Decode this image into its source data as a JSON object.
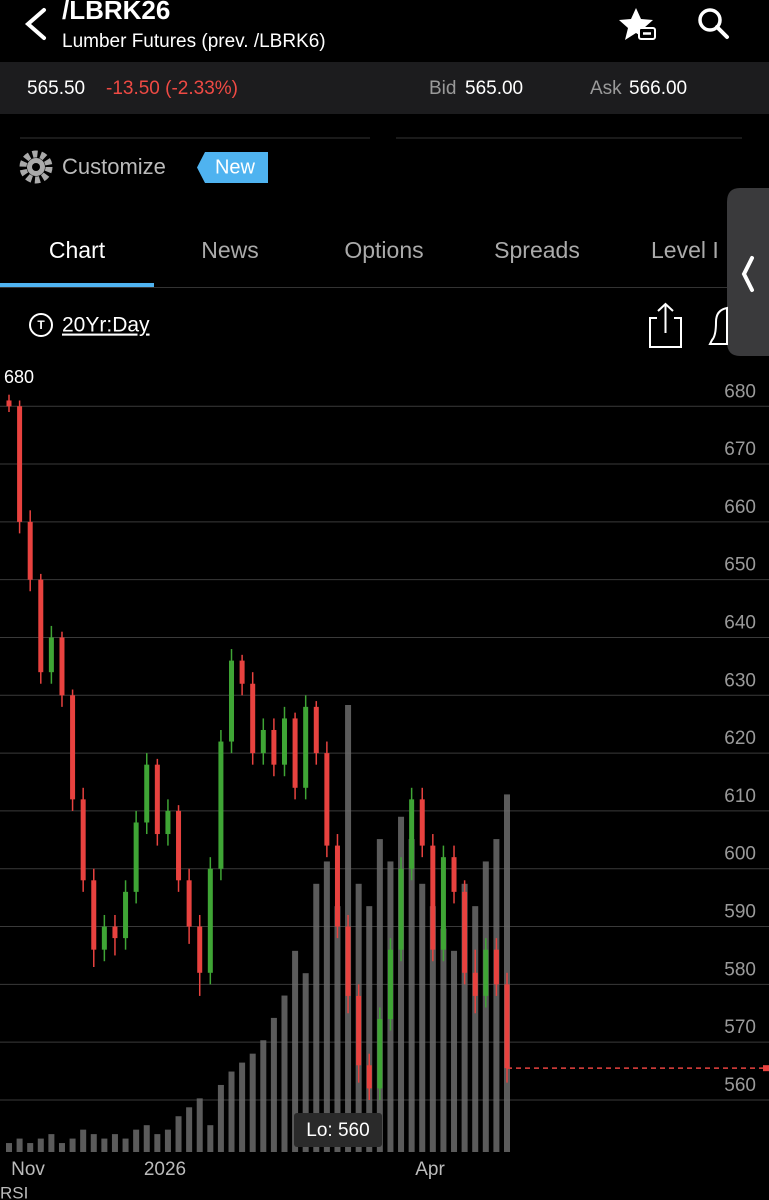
{
  "header": {
    "title": "/LBRK26",
    "subtitle": "Lumber Futures (prev. /LBRK6)"
  },
  "quote": {
    "last": "565.50",
    "change": "-13.50 (-2.33%)",
    "bid_label": "Bid",
    "bid": "565.00",
    "ask_label": "Ask",
    "ask": "566.00"
  },
  "customize": {
    "label": "Customize",
    "badge": "New"
  },
  "tabs": [
    "Chart",
    "News",
    "Options",
    "Spreads",
    "Level I"
  ],
  "timeframe": "20Yr:Day",
  "chart_data": {
    "type": "candlestick",
    "ylim": [
      551,
      688
    ],
    "yticks": [
      560,
      570,
      580,
      590,
      600,
      610,
      620,
      630,
      640,
      650,
      660,
      670,
      680
    ],
    "grid": true,
    "high_label": "680",
    "low_label": "Lo: 560",
    "x_labels": [
      "Nov",
      "2026",
      "Apr"
    ],
    "up_color": "#3fa535",
    "down_color": "#e8423f",
    "volume_color": "#6b6b6b",
    "open": [
      681,
      680,
      660,
      650,
      634,
      640,
      630,
      612,
      598,
      586,
      590,
      588,
      596,
      608,
      618,
      606,
      610,
      598,
      590,
      582,
      600,
      622,
      636,
      632,
      620,
      624,
      618,
      626,
      614,
      628,
      620,
      604,
      590,
      578,
      566,
      562,
      574,
      586,
      600,
      612,
      604,
      586,
      602,
      596,
      582,
      578,
      586,
      580
    ],
    "high": [
      682,
      681,
      662,
      651,
      642,
      641,
      631,
      614,
      600,
      592,
      592,
      598,
      610,
      620,
      619,
      612,
      611,
      600,
      592,
      602,
      624,
      638,
      637,
      634,
      626,
      626,
      628,
      627,
      630,
      629,
      622,
      606,
      592,
      580,
      568,
      576,
      588,
      602,
      614,
      614,
      606,
      604,
      604,
      598,
      586,
      588,
      588,
      582
    ],
    "low": [
      679,
      658,
      648,
      632,
      632,
      628,
      610,
      596,
      583,
      584,
      585,
      586,
      594,
      606,
      604,
      604,
      596,
      587,
      578,
      580,
      598,
      620,
      630,
      618,
      618,
      616,
      616,
      612,
      612,
      618,
      602,
      588,
      575,
      563,
      560,
      560,
      572,
      584,
      598,
      602,
      584,
      584,
      594,
      580,
      575,
      576,
      578,
      563
    ],
    "close": [
      680,
      660,
      650,
      634,
      640,
      630,
      612,
      598,
      586,
      590,
      588,
      596,
      608,
      618,
      606,
      610,
      598,
      590,
      582,
      600,
      622,
      636,
      632,
      620,
      624,
      618,
      626,
      614,
      628,
      620,
      604,
      590,
      578,
      566,
      562,
      574,
      586,
      600,
      612,
      604,
      586,
      602,
      596,
      582,
      578,
      586,
      580,
      565.5
    ],
    "volume": [
      2,
      3,
      2,
      3,
      4,
      2,
      3,
      5,
      4,
      3,
      4,
      3,
      5,
      6,
      4,
      5,
      8,
      10,
      12,
      6,
      15,
      18,
      20,
      22,
      25,
      30,
      35,
      45,
      40,
      60,
      65,
      55,
      100,
      60,
      55,
      70,
      65,
      75,
      70,
      60,
      55,
      50,
      45,
      60,
      55,
      65,
      70,
      80
    ],
    "last_price": 565.5
  },
  "footer": {
    "indicator": "RSI"
  }
}
